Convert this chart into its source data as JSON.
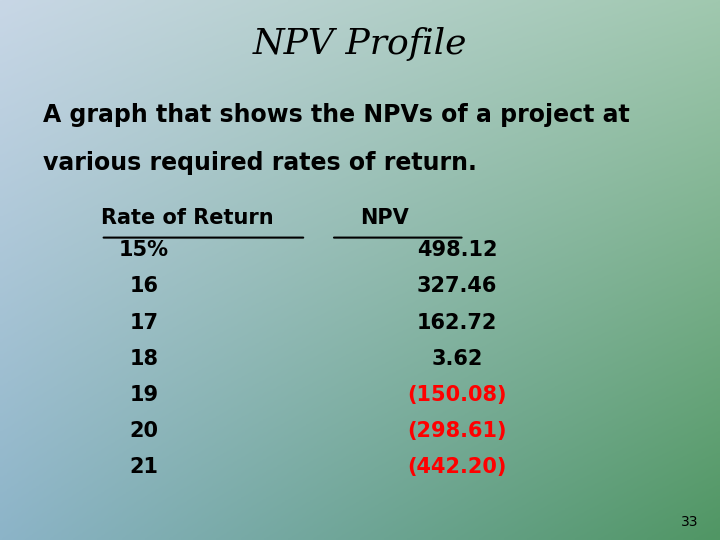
{
  "title": "NPV Profile",
  "subtitle_line1": "A graph that shows the NPVs of a project at",
  "subtitle_line2": "various required rates of return.",
  "col1_header": "Rate of Return",
  "col2_header": "NPV",
  "rates": [
    "15%",
    "16",
    "17",
    "18",
    "19",
    "20",
    "21"
  ],
  "npvs": [
    "498.12",
    "327.46",
    "162.72",
    "3.62",
    "(150.08)",
    "(298.61)",
    "(442.20)"
  ],
  "npv_colors": [
    "black",
    "black",
    "black",
    "black",
    "red",
    "red",
    "red"
  ],
  "title_color": "black",
  "text_color": "black",
  "page_number": "33",
  "bg_tl": [
    200,
    215,
    230
  ],
  "bg_tr": [
    160,
    200,
    175
  ],
  "bg_bl": [
    140,
    180,
    200
  ],
  "bg_br": [
    80,
    150,
    100
  ]
}
